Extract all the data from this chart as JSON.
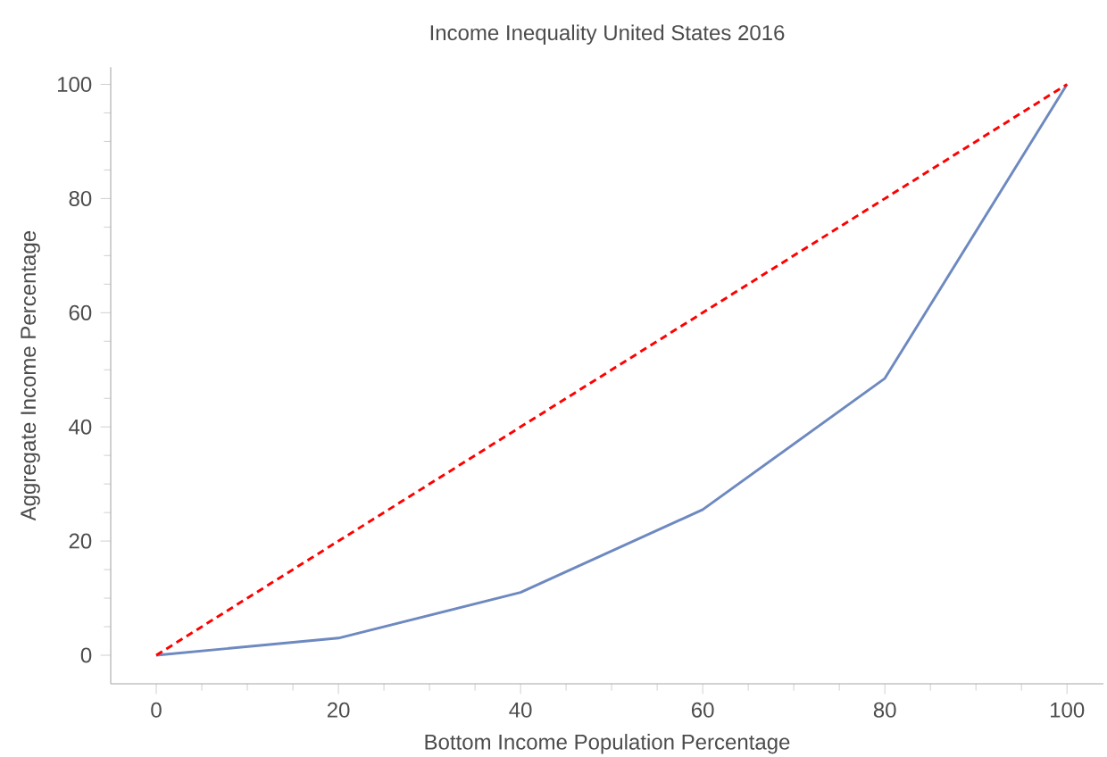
{
  "chart_data": {
    "type": "line",
    "title": "Income Inequality United States 2016",
    "xlabel": "Bottom Income Population Percentage",
    "ylabel": "Aggregate Income Percentage",
    "series": [
      {
        "color": "#6d89c0",
        "line_style": "solid",
        "x": [
          0,
          20,
          40,
          60,
          80,
          100
        ],
        "values": [
          0,
          3,
          11,
          25.5,
          48.5,
          100
        ]
      },
      {
        "color": "#ff0000",
        "line_style": "dashed",
        "x": [
          0,
          100
        ],
        "values": [
          0,
          100
        ]
      }
    ],
    "xlim": [
      -5,
      104
    ],
    "ylim": [
      -5,
      103
    ],
    "xticks": [
      0,
      20,
      40,
      60,
      80,
      100
    ],
    "yticks": [
      0,
      20,
      40,
      60,
      80,
      100
    ],
    "grid": false,
    "marker": "none"
  }
}
